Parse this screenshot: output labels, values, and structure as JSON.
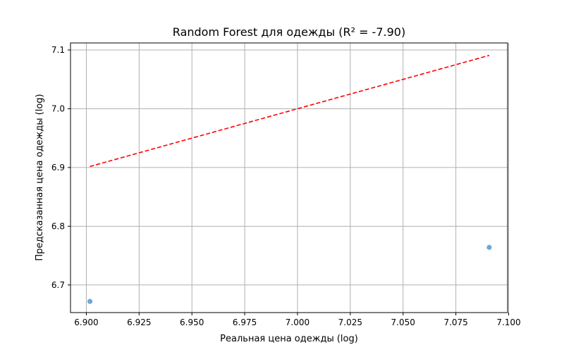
{
  "chart_data": {
    "type": "scatter",
    "title": "Random Forest для одежды (R² = -7.90)",
    "xlabel": "Реальная цена одежды (log)",
    "ylabel": "Предсказанная цена одежды (log)",
    "xlim": [
      6.8925,
      7.0995
    ],
    "ylim": [
      6.653,
      7.112
    ],
    "xticks": [
      6.9,
      6.925,
      6.95,
      6.975,
      7.0,
      7.025,
      7.05,
      7.075,
      7.1
    ],
    "xtick_labels": [
      "6.900",
      "6.925",
      "6.950",
      "6.975",
      "7.000",
      "7.025",
      "7.050",
      "7.075",
      "7.100"
    ],
    "yticks": [
      6.7,
      6.8,
      6.9,
      7.0,
      7.1
    ],
    "ytick_labels": [
      "6.7",
      "6.8",
      "6.9",
      "7.0",
      "7.1"
    ],
    "grid": true,
    "points": [
      {
        "x": 6.9017,
        "y": 6.672
      },
      {
        "x": 7.0908,
        "y": 6.764
      }
    ],
    "reference_line": {
      "x": [
        6.9017,
        7.0908
      ],
      "y": [
        6.9017,
        7.0908
      ],
      "style": "dashed",
      "color": "#ff0000"
    },
    "point_color": "#6fa8d6"
  }
}
